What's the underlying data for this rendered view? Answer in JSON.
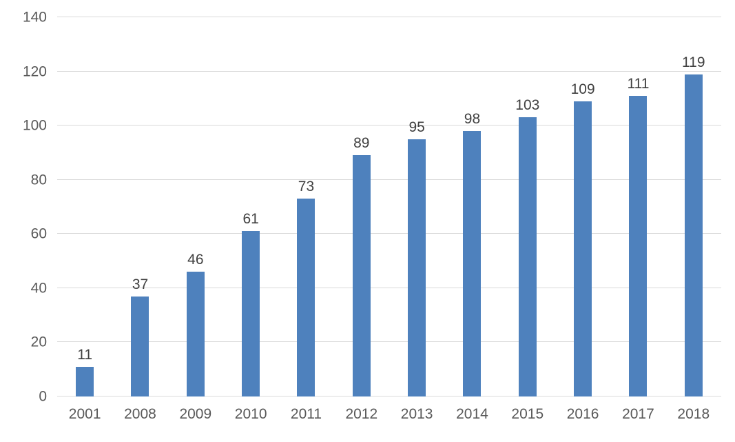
{
  "chart_data": {
    "type": "bar",
    "title": "",
    "xlabel": "",
    "ylabel": "",
    "categories": [
      "2001",
      "2008",
      "2009",
      "2010",
      "2011",
      "2012",
      "2013",
      "2014",
      "2015",
      "2016",
      "2017",
      "2018"
    ],
    "values": [
      11,
      37,
      46,
      61,
      73,
      89,
      95,
      98,
      103,
      109,
      111,
      119
    ],
    "data_labels_shown": true,
    "ylim": [
      0,
      140
    ],
    "ytick_step": 20,
    "ytick_labels": [
      "0",
      "20",
      "40",
      "60",
      "80",
      "100",
      "120",
      "140"
    ],
    "grid": true,
    "legend_position": "none",
    "colors": {
      "bar": "#4e81bd",
      "gridline": "#d9d9d9",
      "tick_text": "#595959",
      "data_label_text": "#404040",
      "background": "#ffffff"
    }
  }
}
